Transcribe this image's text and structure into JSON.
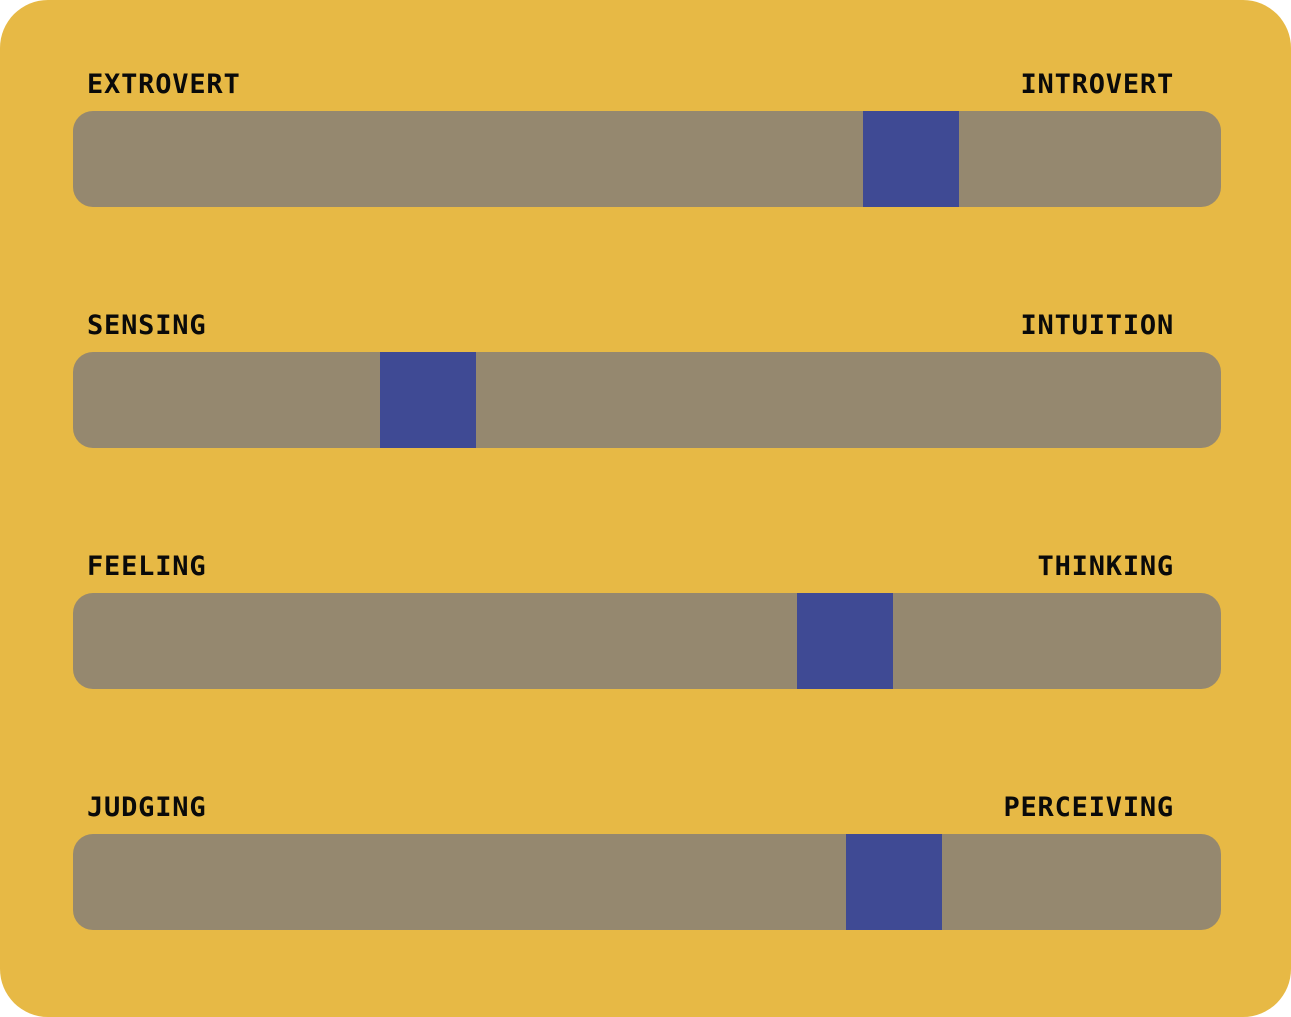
{
  "theme": {
    "page_bg": "#ffffff",
    "card_bg": "#e7b945",
    "track_bg": "#95886f",
    "handle_bg": "#3f4a94",
    "label_color": "#0a0a0a"
  },
  "sliders": [
    {
      "left_label": "EXTROVERT",
      "right_label": "INTROVERT",
      "handle_left_pct": 68.8
    },
    {
      "left_label": "SENSING",
      "right_label": "INTUITION",
      "handle_left_pct": 26.7
    },
    {
      "left_label": "FEELING",
      "right_label": "THINKING",
      "handle_left_pct": 63.1
    },
    {
      "left_label": "JUDGING",
      "right_label": "PERCEIVING",
      "handle_left_pct": 67.3
    }
  ]
}
